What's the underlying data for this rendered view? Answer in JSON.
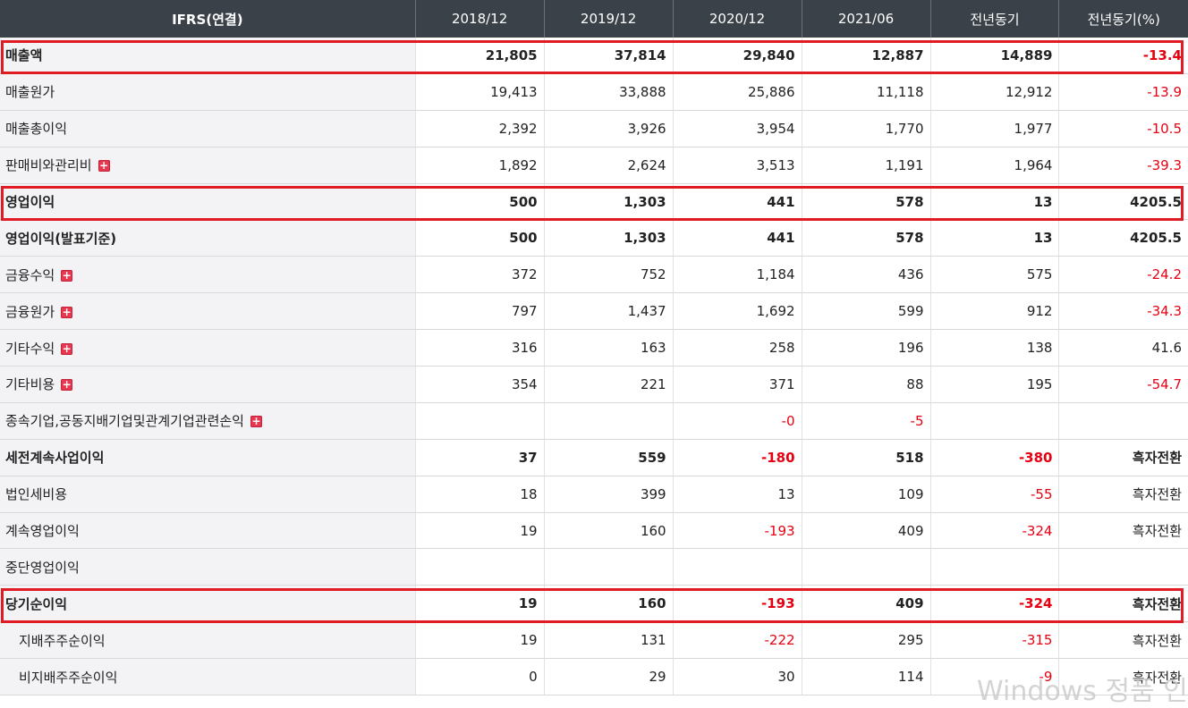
{
  "header": [
    "IFRS(연결)",
    "2018/12",
    "2019/12",
    "2020/12",
    "2021/06",
    "전년동기",
    "전년동기(%)"
  ],
  "rows": [
    {
      "label": "매출액",
      "bold": true,
      "expand": false,
      "indent": false,
      "values": [
        "21,805",
        "37,814",
        "29,840",
        "12,887",
        "14,889",
        "-13.4"
      ]
    },
    {
      "label": "매출원가",
      "bold": false,
      "expand": false,
      "indent": false,
      "values": [
        "19,413",
        "33,888",
        "25,886",
        "11,118",
        "12,912",
        "-13.9"
      ]
    },
    {
      "label": "매출총이익",
      "bold": false,
      "expand": false,
      "indent": false,
      "values": [
        "2,392",
        "3,926",
        "3,954",
        "1,770",
        "1,977",
        "-10.5"
      ]
    },
    {
      "label": "판매비와관리비",
      "bold": false,
      "expand": true,
      "indent": false,
      "values": [
        "1,892",
        "2,624",
        "3,513",
        "1,191",
        "1,964",
        "-39.3"
      ]
    },
    {
      "label": "영업이익",
      "bold": true,
      "expand": false,
      "indent": false,
      "values": [
        "500",
        "1,303",
        "441",
        "578",
        "13",
        "4205.5"
      ]
    },
    {
      "label": "영업이익(발표기준)",
      "bold": true,
      "expand": false,
      "indent": false,
      "values": [
        "500",
        "1,303",
        "441",
        "578",
        "13",
        "4205.5"
      ]
    },
    {
      "label": "금융수익",
      "bold": false,
      "expand": true,
      "indent": false,
      "values": [
        "372",
        "752",
        "1,184",
        "436",
        "575",
        "-24.2"
      ]
    },
    {
      "label": "금융원가",
      "bold": false,
      "expand": true,
      "indent": false,
      "values": [
        "797",
        "1,437",
        "1,692",
        "599",
        "912",
        "-34.3"
      ]
    },
    {
      "label": "기타수익",
      "bold": false,
      "expand": true,
      "indent": false,
      "values": [
        "316",
        "163",
        "258",
        "196",
        "138",
        "41.6"
      ]
    },
    {
      "label": "기타비용",
      "bold": false,
      "expand": true,
      "indent": false,
      "values": [
        "354",
        "221",
        "371",
        "88",
        "195",
        "-54.7"
      ]
    },
    {
      "label": "종속기업,공동지배기업및관계기업관련손익",
      "bold": false,
      "expand": true,
      "indent": false,
      "values": [
        "",
        "",
        "-0",
        "-5",
        "",
        ""
      ]
    },
    {
      "label": "세전계속사업이익",
      "bold": true,
      "expand": false,
      "indent": false,
      "values": [
        "37",
        "559",
        "-180",
        "518",
        "-380",
        "흑자전환"
      ]
    },
    {
      "label": "법인세비용",
      "bold": false,
      "expand": false,
      "indent": false,
      "values": [
        "18",
        "399",
        "13",
        "109",
        "-55",
        "흑자전환"
      ]
    },
    {
      "label": "계속영업이익",
      "bold": false,
      "expand": false,
      "indent": false,
      "values": [
        "19",
        "160",
        "-193",
        "409",
        "-324",
        "흑자전환"
      ]
    },
    {
      "label": "중단영업이익",
      "bold": false,
      "expand": false,
      "indent": false,
      "values": [
        "",
        "",
        "",
        "",
        "",
        ""
      ]
    },
    {
      "label": "당기순이익",
      "bold": true,
      "expand": false,
      "indent": false,
      "values": [
        "19",
        "160",
        "-193",
        "409",
        "-324",
        "흑자전환"
      ]
    },
    {
      "label": "지배주주순이익",
      "bold": false,
      "expand": false,
      "indent": true,
      "values": [
        "19",
        "131",
        "-222",
        "295",
        "-315",
        "흑자전환"
      ]
    },
    {
      "label": "비지배주주순이익",
      "bold": false,
      "expand": false,
      "indent": true,
      "values": [
        "0",
        "29",
        "30",
        "114",
        "-9",
        "흑자전환"
      ]
    }
  ],
  "expand_symbol": "+",
  "highlighted_rows": [
    "매출액",
    "영업이익",
    "당기순이익"
  ],
  "highlight_color": "#e01b24",
  "negative_color": "#e60012",
  "watermark": "Windows 정품 인"
}
